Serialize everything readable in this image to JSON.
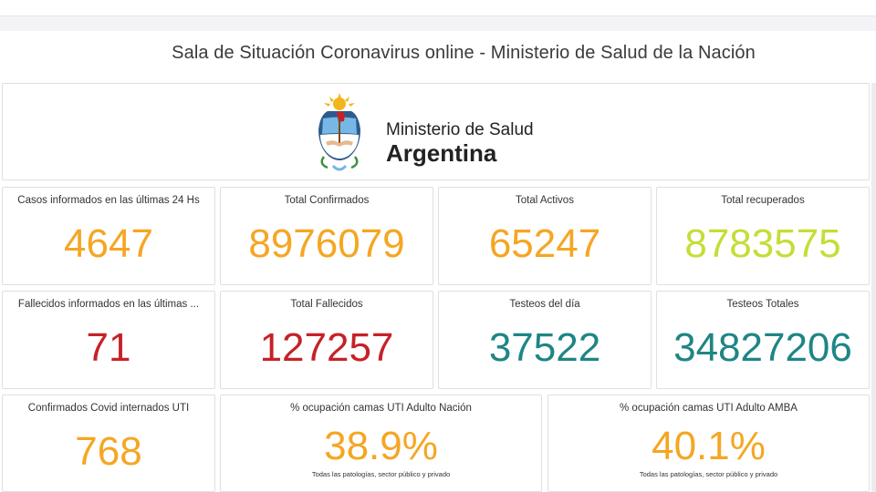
{
  "header": {
    "title": "Sala de Situación Coronavirus online - Ministerio de Salud de la Nación"
  },
  "logo": {
    "line1": "Ministerio de Salud",
    "line2": "Argentina"
  },
  "colors": {
    "orange": "#f5a623",
    "lime": "#c6dd36",
    "red": "#c62128",
    "teal": "#1f8585"
  },
  "stats": {
    "casos24": {
      "label": "Casos informados en las últimas 24 Hs",
      "value": "4647",
      "color": "orange"
    },
    "total_confirmados": {
      "label": "Total Confirmados",
      "value": "8976079",
      "color": "orange"
    },
    "total_activos": {
      "label": "Total Activos",
      "value": "65247",
      "color": "orange"
    },
    "total_recuperados": {
      "label": "Total recuperados",
      "value": "8783575",
      "color": "lime"
    },
    "fallecidos24": {
      "label": "Fallecidos informados en las últimas ...",
      "value": "71",
      "color": "red"
    },
    "total_fallecidos": {
      "label": "Total Fallecidos",
      "value": "127257",
      "color": "red"
    },
    "testeos_dia": {
      "label": "Testeos del día",
      "value": "37522",
      "color": "teal"
    },
    "testeos_totales": {
      "label": "Testeos Totales",
      "value": "34827206",
      "color": "teal"
    },
    "internados_uti": {
      "label": "Confirmados Covid internados UTI",
      "value": "768",
      "color": "orange"
    },
    "ocupacion_nacion": {
      "label": "% ocupación camas UTI Adulto Nación",
      "value": "38.9%",
      "note": "Todas las patologías, sector público y privado",
      "color": "orange"
    },
    "ocupacion_amba": {
      "label": "% ocupación camas UTI Adulto AMBA",
      "value": "40.1%",
      "note": "Todas las patologías, sector público y privado",
      "color": "orange"
    }
  }
}
